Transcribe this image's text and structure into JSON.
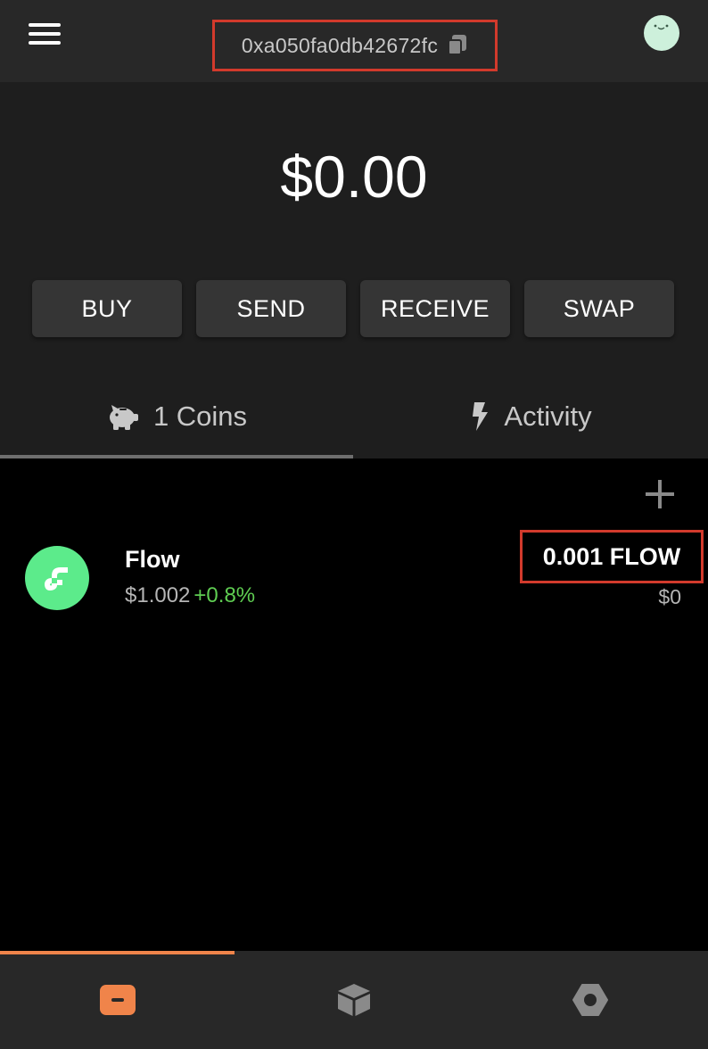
{
  "header": {
    "address": "0xa050fa0db42672fc",
    "menu_icon": "hamburger-menu-icon",
    "copy_icon": "copy-icon",
    "avatar_color": "#cdf0db"
  },
  "balance": "$0.00",
  "actions": [
    {
      "label": "BUY"
    },
    {
      "label": "SEND"
    },
    {
      "label": "RECEIVE"
    },
    {
      "label": "SWAP"
    }
  ],
  "tabs": [
    {
      "label": "1 Coins",
      "icon": "piggy-bank-icon",
      "active": true
    },
    {
      "label": "Activity",
      "icon": "lightning-bolt-icon",
      "active": false
    }
  ],
  "coins": [
    {
      "name": "Flow",
      "price": "$1.002",
      "change": "+0.8%",
      "amount": "0.001 FLOW",
      "value": "$0",
      "logo_color": "#5ceb8b",
      "change_color": "#5fcd52"
    }
  ],
  "bottom_nav": [
    {
      "icon": "wallet-icon",
      "active": true
    },
    {
      "icon": "nft-cube-icon",
      "active": false
    },
    {
      "icon": "settings-icon",
      "active": false
    }
  ],
  "colors": {
    "accent": "#f0844a",
    "highlight_border": "#d23a2c"
  }
}
